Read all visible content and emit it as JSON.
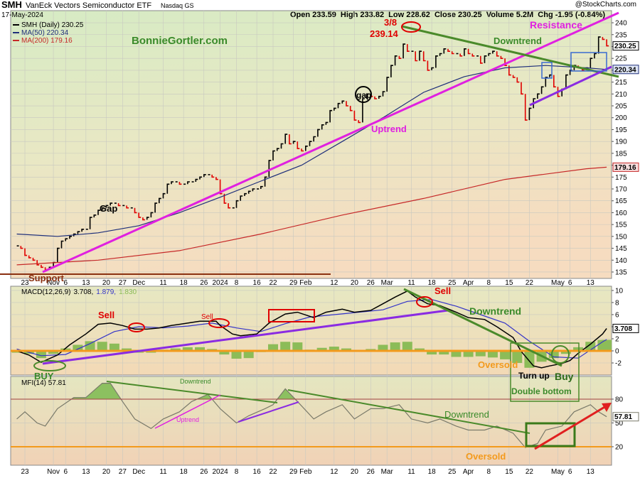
{
  "header": {
    "symbol": "SMH",
    "name": "VanEck Vectors Semiconductor ETF",
    "exchange": "Nasdaq GS",
    "date": "17-May-2024",
    "quote": "Open 233.59  High 233.82  Low 228.62  Close 230.25  Volume 5.2M  Chg -1.95 (-0.84%)",
    "source": "@StockCharts.com"
  },
  "chart_data": [
    {
      "type": "price",
      "xlim": [
        -1.5,
        146.2
      ],
      "xticks": [
        {
          "value": 2,
          "label": "23"
        },
        {
          "value": 9,
          "label": "Nov"
        },
        {
          "value": 12,
          "label": "6"
        },
        {
          "value": 17,
          "label": "13"
        },
        {
          "value": 22,
          "label": "20"
        },
        {
          "value": 26,
          "label": "27"
        },
        {
          "value": 30,
          "label": "Dec"
        },
        {
          "value": 36,
          "label": "11"
        },
        {
          "value": 41,
          "label": "18"
        },
        {
          "value": 46,
          "label": "26"
        },
        {
          "value": 50,
          "label": "2024"
        },
        {
          "value": 54,
          "label": "8"
        },
        {
          "value": 59,
          "label": "16"
        },
        {
          "value": 63,
          "label": "22"
        },
        {
          "value": 68,
          "label": "29"
        },
        {
          "value": 71,
          "label": "Feb"
        },
        {
          "value": 78,
          "label": "12"
        },
        {
          "value": 83,
          "label": "20"
        },
        {
          "value": 87,
          "label": "26"
        },
        {
          "value": 91,
          "label": "Mar"
        },
        {
          "value": 97,
          "label": "11"
        },
        {
          "value": 102,
          "label": "18"
        },
        {
          "value": 107,
          "label": "25"
        },
        {
          "value": 111,
          "label": "Apr"
        },
        {
          "value": 116,
          "label": "8"
        },
        {
          "value": 121,
          "label": "15"
        },
        {
          "value": 126,
          "label": "22"
        },
        {
          "value": 133,
          "label": "May"
        },
        {
          "value": 136,
          "label": "6"
        },
        {
          "value": 141,
          "label": "13"
        }
      ],
      "ylim": [
        132.3,
        245.1
      ],
      "yticks": [
        135,
        140,
        145,
        150,
        155,
        160,
        165,
        170,
        175,
        180,
        185,
        190,
        195,
        200,
        205,
        210,
        215,
        220,
        225,
        230,
        235,
        240
      ],
      "series": [
        {
          "name": "SMH (Daily) 230.25",
          "value_label": "230.25",
          "color": "#000000",
          "down_color": "#e00000",
          "x": [
            0,
            1,
            2,
            3,
            4,
            5,
            6,
            7,
            8,
            9,
            10,
            11,
            12,
            13,
            14,
            15,
            16,
            17,
            18,
            19,
            20,
            21,
            22,
            23,
            24,
            25,
            26,
            27,
            28,
            29,
            30,
            31,
            32,
            33,
            34,
            35,
            36,
            37,
            38,
            39,
            40,
            41,
            42,
            43,
            44,
            45,
            46,
            47,
            48,
            49,
            50,
            51,
            52,
            53,
            54,
            55,
            56,
            57,
            58,
            59,
            60,
            61,
            62,
            63,
            64,
            65,
            66,
            67,
            68,
            69,
            70,
            71,
            72,
            73,
            74,
            75,
            76,
            77,
            78,
            79,
            80,
            81,
            82,
            83,
            84,
            85,
            86,
            87,
            88,
            89,
            90,
            91,
            92,
            93,
            94,
            95,
            96,
            97,
            98,
            99,
            100,
            101,
            102,
            103,
            104,
            105,
            106,
            107,
            108,
            109,
            110,
            111,
            112,
            113,
            114,
            115,
            116,
            117,
            118,
            119,
            120,
            121,
            122,
            123,
            124,
            125,
            126,
            127,
            128,
            129,
            130,
            131,
            132,
            133,
            134,
            135,
            136,
            137,
            138,
            139,
            140,
            141,
            142,
            143,
            144,
            145
          ],
          "values": [
            146,
            145,
            142,
            141,
            140,
            138,
            137,
            136,
            137,
            139,
            145,
            148,
            149,
            150,
            151,
            152,
            153,
            153,
            158,
            159,
            161,
            162,
            163,
            164,
            164,
            163,
            163,
            162,
            162,
            160,
            158,
            157,
            158,
            160,
            164,
            166,
            168,
            172,
            173,
            173,
            172,
            172,
            173,
            173,
            174,
            175,
            176,
            176,
            175,
            174,
            168,
            164,
            162,
            162,
            165,
            167,
            168,
            169,
            170,
            170,
            171,
            175,
            182,
            186,
            187,
            189,
            193,
            189,
            190,
            187,
            186,
            188,
            190,
            192,
            195,
            197,
            198,
            203,
            204,
            206,
            207,
            205,
            203,
            199,
            198,
            208,
            210,
            209,
            208,
            209,
            211,
            217,
            222,
            226,
            225,
            231,
            228,
            228,
            224,
            228,
            224,
            220,
            221,
            226,
            227,
            229,
            228,
            227,
            227,
            226,
            229,
            227,
            226,
            226,
            223,
            226,
            227,
            228,
            226,
            225,
            222,
            218,
            217,
            215,
            210,
            199,
            204,
            208,
            210,
            213,
            217,
            218,
            213,
            209,
            212,
            218,
            220,
            222,
            221,
            220,
            221,
            225,
            227,
            234,
            233,
            230.25
          ]
        },
        {
          "name": "MA(50) 220.34",
          "value_label": "220.34",
          "color": "#1f2f7a",
          "x": [
            0,
            10,
            20,
            30,
            40,
            50,
            60,
            70,
            80,
            90,
            100,
            110,
            120,
            130,
            140,
            145
          ],
          "values": [
            151,
            150,
            151.5,
            154.5,
            160,
            166.5,
            173.3,
            180,
            190,
            200,
            210.7,
            217.3,
            221,
            222,
            221,
            220.34
          ]
        },
        {
          "name": "MA(200) 179.16",
          "value_label": "179.16",
          "color": "#c62828",
          "x": [
            0,
            20,
            40,
            60,
            80,
            100,
            120,
            140,
            145
          ],
          "values": [
            138,
            140,
            144,
            151,
            159,
            166,
            174,
            178.5,
            179.16
          ]
        }
      ]
    },
    {
      "type": "macd",
      "title": "MACD(12,26,9)",
      "legend": [
        "3.708,",
        "1.879,",
        "1.830"
      ],
      "ylim": [
        -4,
        10.7
      ],
      "yticks": [
        -2,
        0,
        2,
        4,
        6,
        8,
        10
      ],
      "series": [
        {
          "value_label": "3.708",
          "color": "#000000",
          "x": [
            0,
            3,
            6,
            10,
            13,
            17,
            20,
            23,
            26,
            29,
            32,
            35,
            38,
            42,
            45,
            49,
            50,
            53,
            55,
            59,
            62,
            66,
            69,
            73,
            76,
            80,
            83,
            87,
            90,
            93,
            96,
            98,
            101,
            104,
            108,
            111,
            115,
            118,
            122,
            124,
            127,
            129,
            131,
            134,
            136,
            138,
            141,
            144,
            145
          ],
          "values": [
            0,
            -0.7,
            -1.9,
            -0.7,
            1,
            2.8,
            4.4,
            4.6,
            4.2,
            3.6,
            3.6,
            3.8,
            4.2,
            4.6,
            4.9,
            4.9,
            4.2,
            2.8,
            2.5,
            2.8,
            4.6,
            6.1,
            6.4,
            5.5,
            6.4,
            6.9,
            6.4,
            6.7,
            7.8,
            8.9,
            9.9,
            8.9,
            7.8,
            7.5,
            6.4,
            5.5,
            5.2,
            4,
            2.2,
            -0.1,
            -2.5,
            -2.8,
            -2.5,
            -2.1,
            -1.6,
            -0.4,
            1.1,
            2.8,
            3.708
          ]
        },
        {
          "color": "#3434c8",
          "x": [
            0,
            6,
            12,
            18,
            24,
            30,
            36,
            42,
            48,
            54,
            60,
            66,
            72,
            78,
            84,
            90,
            96,
            102,
            108,
            114,
            120,
            126,
            132,
            138,
            144,
            145
          ],
          "values": [
            0.3,
            -0.8,
            -0.6,
            1.2,
            3.2,
            4.0,
            3.8,
            4.1,
            4.6,
            3.8,
            3.2,
            4.5,
            5.6,
            6.0,
            6.4,
            6.8,
            8.2,
            8.5,
            7.4,
            6.0,
            4.6,
            1.6,
            -1.0,
            -1.2,
            1.5,
            1.879
          ]
        },
        {
          "color": "#8cbc58",
          "x": [
            0,
            3,
            6,
            9,
            12,
            15,
            18,
            21,
            24,
            27,
            30,
            33,
            36,
            39,
            42,
            45,
            48,
            51,
            54,
            57,
            60,
            63,
            66,
            69,
            72,
            75,
            78,
            81,
            84,
            87,
            90,
            93,
            96,
            99,
            102,
            105,
            108,
            111,
            114,
            117,
            120,
            123,
            126,
            129,
            132,
            135,
            138,
            141,
            144,
            145
          ],
          "values": [
            -0.3,
            -0.5,
            -1.2,
            -0.5,
            0.4,
            1.0,
            1.6,
            1.5,
            1.2,
            0.4,
            -0.3,
            -0.3,
            0.2,
            0.4,
            0.6,
            0.6,
            0.3,
            -0.6,
            -1.3,
            -1.2,
            -0.2,
            1.1,
            1.5,
            1.4,
            0.2,
            0.5,
            0.7,
            0.4,
            0.1,
            0.3,
            1.0,
            1.4,
            1.5,
            0.4,
            -0.6,
            -0.6,
            -1.0,
            -1.0,
            -0.9,
            -1.1,
            -1.4,
            -2.0,
            -2.8,
            -1.8,
            -1.2,
            -0.5,
            0.6,
            1.5,
            1.8,
            1.83
          ]
        }
      ]
    },
    {
      "type": "line",
      "title": "MFI(14) 57.81",
      "ylim": [
        -3.3,
        108.6
      ],
      "yticks": [
        20,
        50,
        80
      ],
      "series": [
        {
          "value_label": "57.81",
          "color": "#7a7a6a",
          "fill_color": "#8cc060",
          "x": [
            0,
            2,
            5,
            7,
            10,
            14,
            17,
            21,
            23,
            26,
            29,
            33,
            36,
            40,
            43,
            47,
            50,
            54,
            57,
            61,
            63,
            66,
            69,
            73,
            76,
            80,
            83,
            87,
            90,
            94,
            97,
            101,
            104,
            108,
            111,
            115,
            118,
            122,
            125,
            128,
            130,
            134,
            137,
            141,
            143,
            145
          ],
          "values": [
            55,
            64,
            50,
            46,
            68,
            82,
            82,
            100,
            100,
            77,
            55,
            43,
            55,
            64,
            77,
            86,
            68,
            50,
            59,
            68,
            73,
            93,
            77,
            55,
            64,
            73,
            55,
            68,
            68,
            73,
            55,
            50,
            55,
            46,
            41,
            41,
            46,
            37,
            19,
            24,
            41,
            46,
            64,
            73,
            64,
            57.81
          ]
        }
      ]
    }
  ],
  "annotations": {
    "site": "BonnieGortler.com",
    "peak_date": "3/8",
    "peak_value": "239.14",
    "downtrend": "Downtrend",
    "resistance": "Resistance",
    "uptrend": "Uptrend",
    "gap1": "Gap",
    "gap2": "gap",
    "support": "Support",
    "macd_sell1": "Sell",
    "macd_sell2": "Sell",
    "macd_sell3": "Sell",
    "macd_downtrend": "Downtrend",
    "macd_oversold": "Oversold",
    "turn_up": "Turn up",
    "buy": "Buy",
    "double_bottom": "Double bottom",
    "macd_buy": "BUY",
    "mfi_downtrend1": "Downtrend",
    "mfi_uptrend": "Uptrend",
    "mfi_downtrend2": "Downtrend",
    "mfi_oversold": "Oversold"
  }
}
